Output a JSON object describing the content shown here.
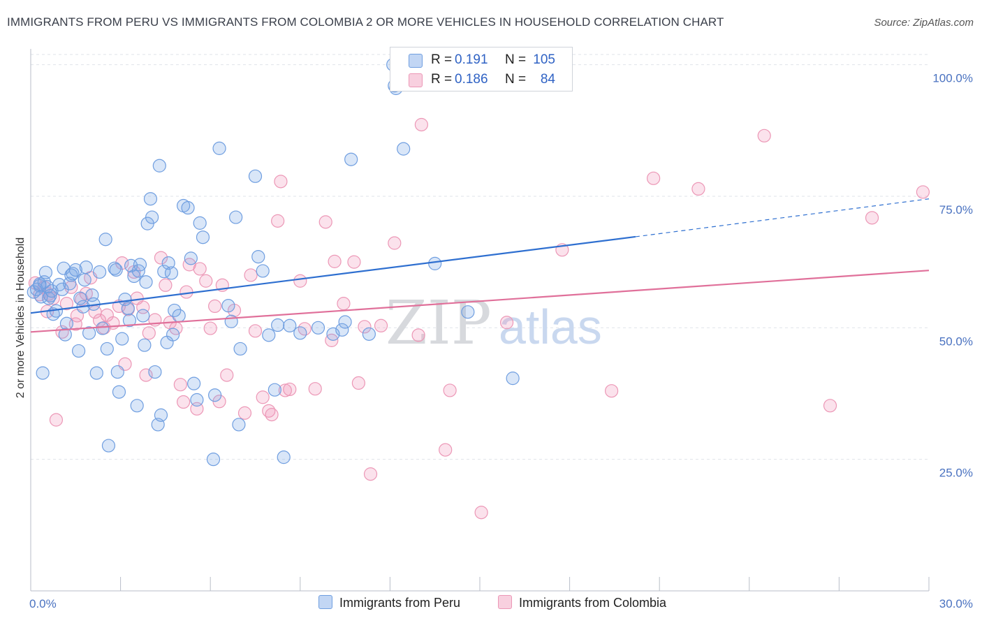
{
  "header": {
    "title": "IMMIGRANTS FROM PERU VS IMMIGRANTS FROM COLOMBIA 2 OR MORE VEHICLES IN HOUSEHOLD CORRELATION CHART",
    "source": "Source: ZipAtlas.com"
  },
  "watermark": {
    "zip": "ZIP",
    "atlas": "atlas"
  },
  "legend": {
    "rows": [
      {
        "r_label": "R =",
        "r_value": "0.191",
        "n_label": "N =",
        "n_value": "105",
        "color": "#7fa8e6"
      },
      {
        "r_label": "R =",
        "r_value": "0.186",
        "n_label": "N =",
        "n_value": "84",
        "color": "#f1a6c0"
      }
    ]
  },
  "colors": {
    "peru_fill": "rgba(120,165,230,0.28)",
    "peru_stroke": "#6f9ee0",
    "peru_line": "#2e6fd0",
    "colombia_fill": "rgba(240,150,185,0.28)",
    "colombia_stroke": "#ec97b6",
    "colombia_line": "#e0709a",
    "grid": "#dfe3ea",
    "axis_text": "#4a72c0"
  },
  "chart_data": {
    "type": "scatter",
    "title": "IMMIGRANTS FROM PERU VS IMMIGRANTS FROM COLOMBIA 2 OR MORE VEHICLES IN HOUSEHOLD CORRELATION CHART",
    "xlabel": "",
    "ylabel": "2 or more Vehicles in Household",
    "xlim": [
      0,
      30
    ],
    "ylim": [
      0,
      103
    ],
    "x_tick_labels": [
      "0.0%",
      "30.0%"
    ],
    "y_ticks": [
      25,
      50,
      75,
      100
    ],
    "y_tick_labels": [
      "25.0%",
      "50.0%",
      "75.0%",
      "100.0%"
    ],
    "grid": "horizontal dashed",
    "legend_position": "bottom",
    "series": [
      {
        "name": "Immigrants from Peru",
        "R": 0.191,
        "N": 105,
        "trend": {
          "x": [
            0,
            20.2
          ],
          "y": [
            52.8,
            67.3
          ],
          "dashed_to": [
            30,
            74.5
          ]
        },
        "points": [
          [
            0.1,
            56.8
          ],
          [
            0.2,
            57.3
          ],
          [
            0.3,
            58.0
          ],
          [
            0.35,
            55.9
          ],
          [
            0.4,
            41.4
          ],
          [
            0.45,
            58.7
          ],
          [
            0.5,
            60.5
          ],
          [
            0.55,
            57.8
          ],
          [
            0.6,
            55.6
          ],
          [
            0.65,
            56.1
          ],
          [
            0.7,
            57.0
          ],
          [
            0.75,
            52.6
          ],
          [
            0.85,
            53.2
          ],
          [
            0.95,
            58.2
          ],
          [
            1.05,
            57.3
          ],
          [
            1.1,
            61.3
          ],
          [
            1.15,
            48.7
          ],
          [
            1.2,
            50.8
          ],
          [
            1.3,
            58.4
          ],
          [
            1.35,
            60.0
          ],
          [
            1.4,
            60.3
          ],
          [
            1.5,
            61.0
          ],
          [
            1.6,
            45.6
          ],
          [
            1.65,
            55.6
          ],
          [
            1.75,
            54.0
          ],
          [
            1.8,
            59.1
          ],
          [
            1.85,
            61.5
          ],
          [
            1.95,
            49.0
          ],
          [
            2.05,
            56.2
          ],
          [
            2.1,
            54.5
          ],
          [
            2.2,
            41.4
          ],
          [
            2.3,
            60.6
          ],
          [
            2.4,
            49.9
          ],
          [
            2.5,
            66.8
          ],
          [
            2.55,
            46.0
          ],
          [
            2.6,
            27.6
          ],
          [
            2.8,
            61.3
          ],
          [
            2.85,
            61.0
          ],
          [
            2.9,
            41.6
          ],
          [
            2.95,
            37.8
          ],
          [
            3.05,
            47.9
          ],
          [
            3.15,
            55.4
          ],
          [
            3.25,
            53.7
          ],
          [
            3.3,
            51.4
          ],
          [
            3.35,
            61.8
          ],
          [
            3.45,
            59.8
          ],
          [
            3.55,
            35.2
          ],
          [
            3.6,
            60.8
          ],
          [
            3.65,
            62.0
          ],
          [
            3.75,
            52.3
          ],
          [
            3.8,
            46.7
          ],
          [
            3.85,
            58.7
          ],
          [
            3.9,
            69.8
          ],
          [
            4.0,
            74.5
          ],
          [
            4.05,
            71.0
          ],
          [
            4.15,
            41.6
          ],
          [
            4.25,
            31.6
          ],
          [
            4.3,
            80.8
          ],
          [
            4.35,
            33.4
          ],
          [
            4.45,
            60.7
          ],
          [
            4.55,
            47.2
          ],
          [
            4.6,
            62.3
          ],
          [
            4.7,
            60.4
          ],
          [
            4.75,
            48.7
          ],
          [
            4.8,
            53.3
          ],
          [
            4.95,
            52.3
          ],
          [
            5.1,
            73.2
          ],
          [
            5.25,
            72.8
          ],
          [
            5.35,
            63.2
          ],
          [
            5.45,
            39.4
          ],
          [
            5.55,
            36.3
          ],
          [
            5.65,
            69.9
          ],
          [
            5.75,
            67.2
          ],
          [
            6.1,
            25.0
          ],
          [
            6.15,
            37.2
          ],
          [
            6.3,
            84.1
          ],
          [
            6.6,
            54.2
          ],
          [
            6.7,
            51.2
          ],
          [
            6.85,
            71.0
          ],
          [
            6.95,
            31.6
          ],
          [
            7.0,
            46.0
          ],
          [
            7.5,
            78.8
          ],
          [
            7.6,
            63.5
          ],
          [
            7.75,
            60.8
          ],
          [
            7.95,
            48.6
          ],
          [
            8.15,
            38.2
          ],
          [
            8.25,
            50.5
          ],
          [
            8.45,
            25.4
          ],
          [
            8.65,
            50.4
          ],
          [
            9.0,
            49.0
          ],
          [
            9.6,
            50.0
          ],
          [
            10.1,
            48.8
          ],
          [
            10.4,
            49.6
          ],
          [
            10.5,
            51.1
          ],
          [
            10.7,
            82.0
          ],
          [
            11.3,
            48.8
          ],
          [
            12.1,
            100.0
          ],
          [
            12.15,
            96.0
          ],
          [
            12.2,
            95.5
          ],
          [
            12.35,
            100.0
          ],
          [
            12.45,
            84.0
          ],
          [
            13.5,
            62.2
          ],
          [
            14.6,
            53.0
          ],
          [
            16.1,
            40.4
          ],
          [
            0.3,
            58.3
          ]
        ]
      },
      {
        "name": "Immigrants from Colombia",
        "R": 0.186,
        "N": 84,
        "trend": {
          "x": [
            0,
            30
          ],
          "y": [
            49.2,
            60.9
          ]
        },
        "points": [
          [
            0.15,
            58.5
          ],
          [
            0.3,
            56.3
          ],
          [
            0.45,
            57.7
          ],
          [
            0.6,
            56.4
          ],
          [
            0.75,
            55.6
          ],
          [
            0.85,
            32.5
          ],
          [
            1.05,
            49.2
          ],
          [
            1.2,
            54.6
          ],
          [
            1.35,
            57.7
          ],
          [
            1.5,
            50.7
          ],
          [
            1.7,
            55.4
          ],
          [
            1.85,
            56.5
          ],
          [
            2.0,
            59.5
          ],
          [
            2.15,
            53.0
          ],
          [
            2.3,
            51.4
          ],
          [
            2.45,
            50.0
          ],
          [
            2.55,
            52.4
          ],
          [
            2.75,
            50.9
          ],
          [
            2.95,
            54.1
          ],
          [
            3.05,
            62.3
          ],
          [
            3.15,
            43.1
          ],
          [
            3.25,
            53.5
          ],
          [
            3.45,
            60.6
          ],
          [
            3.55,
            55.6
          ],
          [
            3.75,
            53.9
          ],
          [
            3.85,
            41.0
          ],
          [
            3.95,
            49.0
          ],
          [
            4.15,
            51.5
          ],
          [
            4.35,
            63.3
          ],
          [
            4.5,
            58.1
          ],
          [
            4.65,
            51.0
          ],
          [
            4.85,
            49.9
          ],
          [
            5.0,
            39.2
          ],
          [
            5.1,
            35.9
          ],
          [
            5.2,
            56.8
          ],
          [
            5.3,
            62.0
          ],
          [
            5.55,
            34.6
          ],
          [
            5.65,
            61.2
          ],
          [
            5.85,
            58.9
          ],
          [
            6.0,
            49.9
          ],
          [
            6.15,
            54.1
          ],
          [
            6.3,
            36.0
          ],
          [
            6.4,
            58.1
          ],
          [
            6.55,
            41.0
          ],
          [
            6.8,
            53.3
          ],
          [
            7.15,
            33.8
          ],
          [
            7.35,
            60.0
          ],
          [
            7.5,
            49.4
          ],
          [
            7.75,
            36.8
          ],
          [
            7.95,
            34.2
          ],
          [
            8.05,
            33.5
          ],
          [
            8.25,
            70.3
          ],
          [
            8.35,
            77.8
          ],
          [
            8.5,
            38.1
          ],
          [
            8.65,
            38.3
          ],
          [
            9.0,
            58.9
          ],
          [
            9.15,
            49.8
          ],
          [
            9.5,
            38.4
          ],
          [
            9.85,
            70.1
          ],
          [
            10.05,
            47.6
          ],
          [
            10.15,
            62.6
          ],
          [
            10.45,
            54.6
          ],
          [
            10.8,
            62.5
          ],
          [
            10.95,
            39.5
          ],
          [
            11.15,
            50.2
          ],
          [
            11.35,
            22.2
          ],
          [
            11.7,
            50.4
          ],
          [
            12.15,
            66.1
          ],
          [
            12.95,
            48.6
          ],
          [
            13.05,
            88.6
          ],
          [
            13.85,
            26.8
          ],
          [
            14.0,
            38.1
          ],
          [
            15.05,
            14.9
          ],
          [
            15.9,
            51.0
          ],
          [
            17.75,
            64.8
          ],
          [
            19.4,
            38.0
          ],
          [
            20.8,
            78.4
          ],
          [
            22.3,
            76.4
          ],
          [
            24.5,
            86.5
          ],
          [
            26.7,
            35.2
          ],
          [
            28.1,
            70.9
          ],
          [
            29.8,
            75.8
          ],
          [
            0.55,
            53.1
          ],
          [
            1.55,
            52.3
          ]
        ]
      }
    ]
  }
}
